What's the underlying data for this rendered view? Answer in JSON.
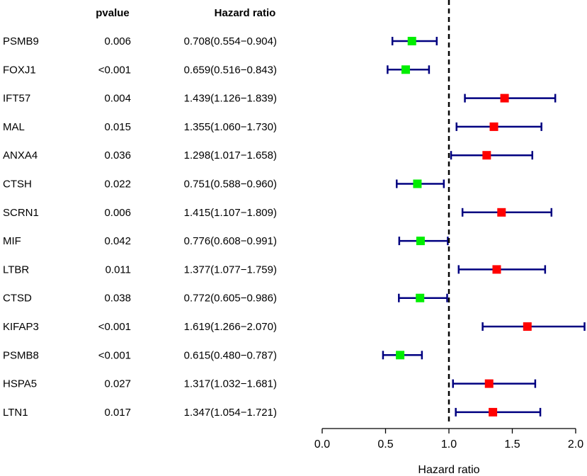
{
  "chart_data": {
    "type": "forest",
    "headers": {
      "pvalue": "pvalue",
      "hr": "Hazard ratio"
    },
    "xlabel": "Hazard ratio",
    "xlim": [
      0.0,
      2.0
    ],
    "ticks": [
      {
        "value": 0.0,
        "label": "0.0"
      },
      {
        "value": 0.5,
        "label": "0.5"
      },
      {
        "value": 1.0,
        "label": "1.0"
      },
      {
        "value": 1.5,
        "label": "1.5"
      },
      {
        "value": 2.0,
        "label": "2.0"
      }
    ],
    "reference_line": 1.0,
    "colors": {
      "protective": "#00ee00",
      "risk": "#ff0000",
      "ci": "#000080"
    },
    "rows": [
      {
        "gene": "PSMB9",
        "pvalue": "0.006",
        "hr_text": "0.708(0.554−0.904)",
        "hr": 0.708,
        "lo": 0.554,
        "hi": 0.904
      },
      {
        "gene": "FOXJ1",
        "pvalue": "<0.001",
        "hr_text": "0.659(0.516−0.843)",
        "hr": 0.659,
        "lo": 0.516,
        "hi": 0.843
      },
      {
        "gene": "IFT57",
        "pvalue": "0.004",
        "hr_text": "1.439(1.126−1.839)",
        "hr": 1.439,
        "lo": 1.126,
        "hi": 1.839
      },
      {
        "gene": "MAL",
        "pvalue": "0.015",
        "hr_text": "1.355(1.060−1.730)",
        "hr": 1.355,
        "lo": 1.06,
        "hi": 1.73
      },
      {
        "gene": "ANXA4",
        "pvalue": "0.036",
        "hr_text": "1.298(1.017−1.658)",
        "hr": 1.298,
        "lo": 1.017,
        "hi": 1.658
      },
      {
        "gene": "CTSH",
        "pvalue": "0.022",
        "hr_text": "0.751(0.588−0.960)",
        "hr": 0.751,
        "lo": 0.588,
        "hi": 0.96
      },
      {
        "gene": "SCRN1",
        "pvalue": "0.006",
        "hr_text": "1.415(1.107−1.809)",
        "hr": 1.415,
        "lo": 1.107,
        "hi": 1.809
      },
      {
        "gene": "MIF",
        "pvalue": "0.042",
        "hr_text": "0.776(0.608−0.991)",
        "hr": 0.776,
        "lo": 0.608,
        "hi": 0.991
      },
      {
        "gene": "LTBR",
        "pvalue": "0.011",
        "hr_text": "1.377(1.077−1.759)",
        "hr": 1.377,
        "lo": 1.077,
        "hi": 1.759
      },
      {
        "gene": "CTSD",
        "pvalue": "0.038",
        "hr_text": "0.772(0.605−0.986)",
        "hr": 0.772,
        "lo": 0.605,
        "hi": 0.986
      },
      {
        "gene": "KIFAP3",
        "pvalue": "<0.001",
        "hr_text": "1.619(1.266−2.070)",
        "hr": 1.619,
        "lo": 1.266,
        "hi": 2.07
      },
      {
        "gene": "PSMB8",
        "pvalue": "<0.001",
        "hr_text": "0.615(0.480−0.787)",
        "hr": 0.615,
        "lo": 0.48,
        "hi": 0.787
      },
      {
        "gene": "HSPA5",
        "pvalue": "0.027",
        "hr_text": "1.317(1.032−1.681)",
        "hr": 1.317,
        "lo": 1.032,
        "hi": 1.681
      },
      {
        "gene": "LTN1",
        "pvalue": "0.017",
        "hr_text": "1.347(1.054−1.721)",
        "hr": 1.347,
        "lo": 1.054,
        "hi": 1.721
      }
    ]
  }
}
